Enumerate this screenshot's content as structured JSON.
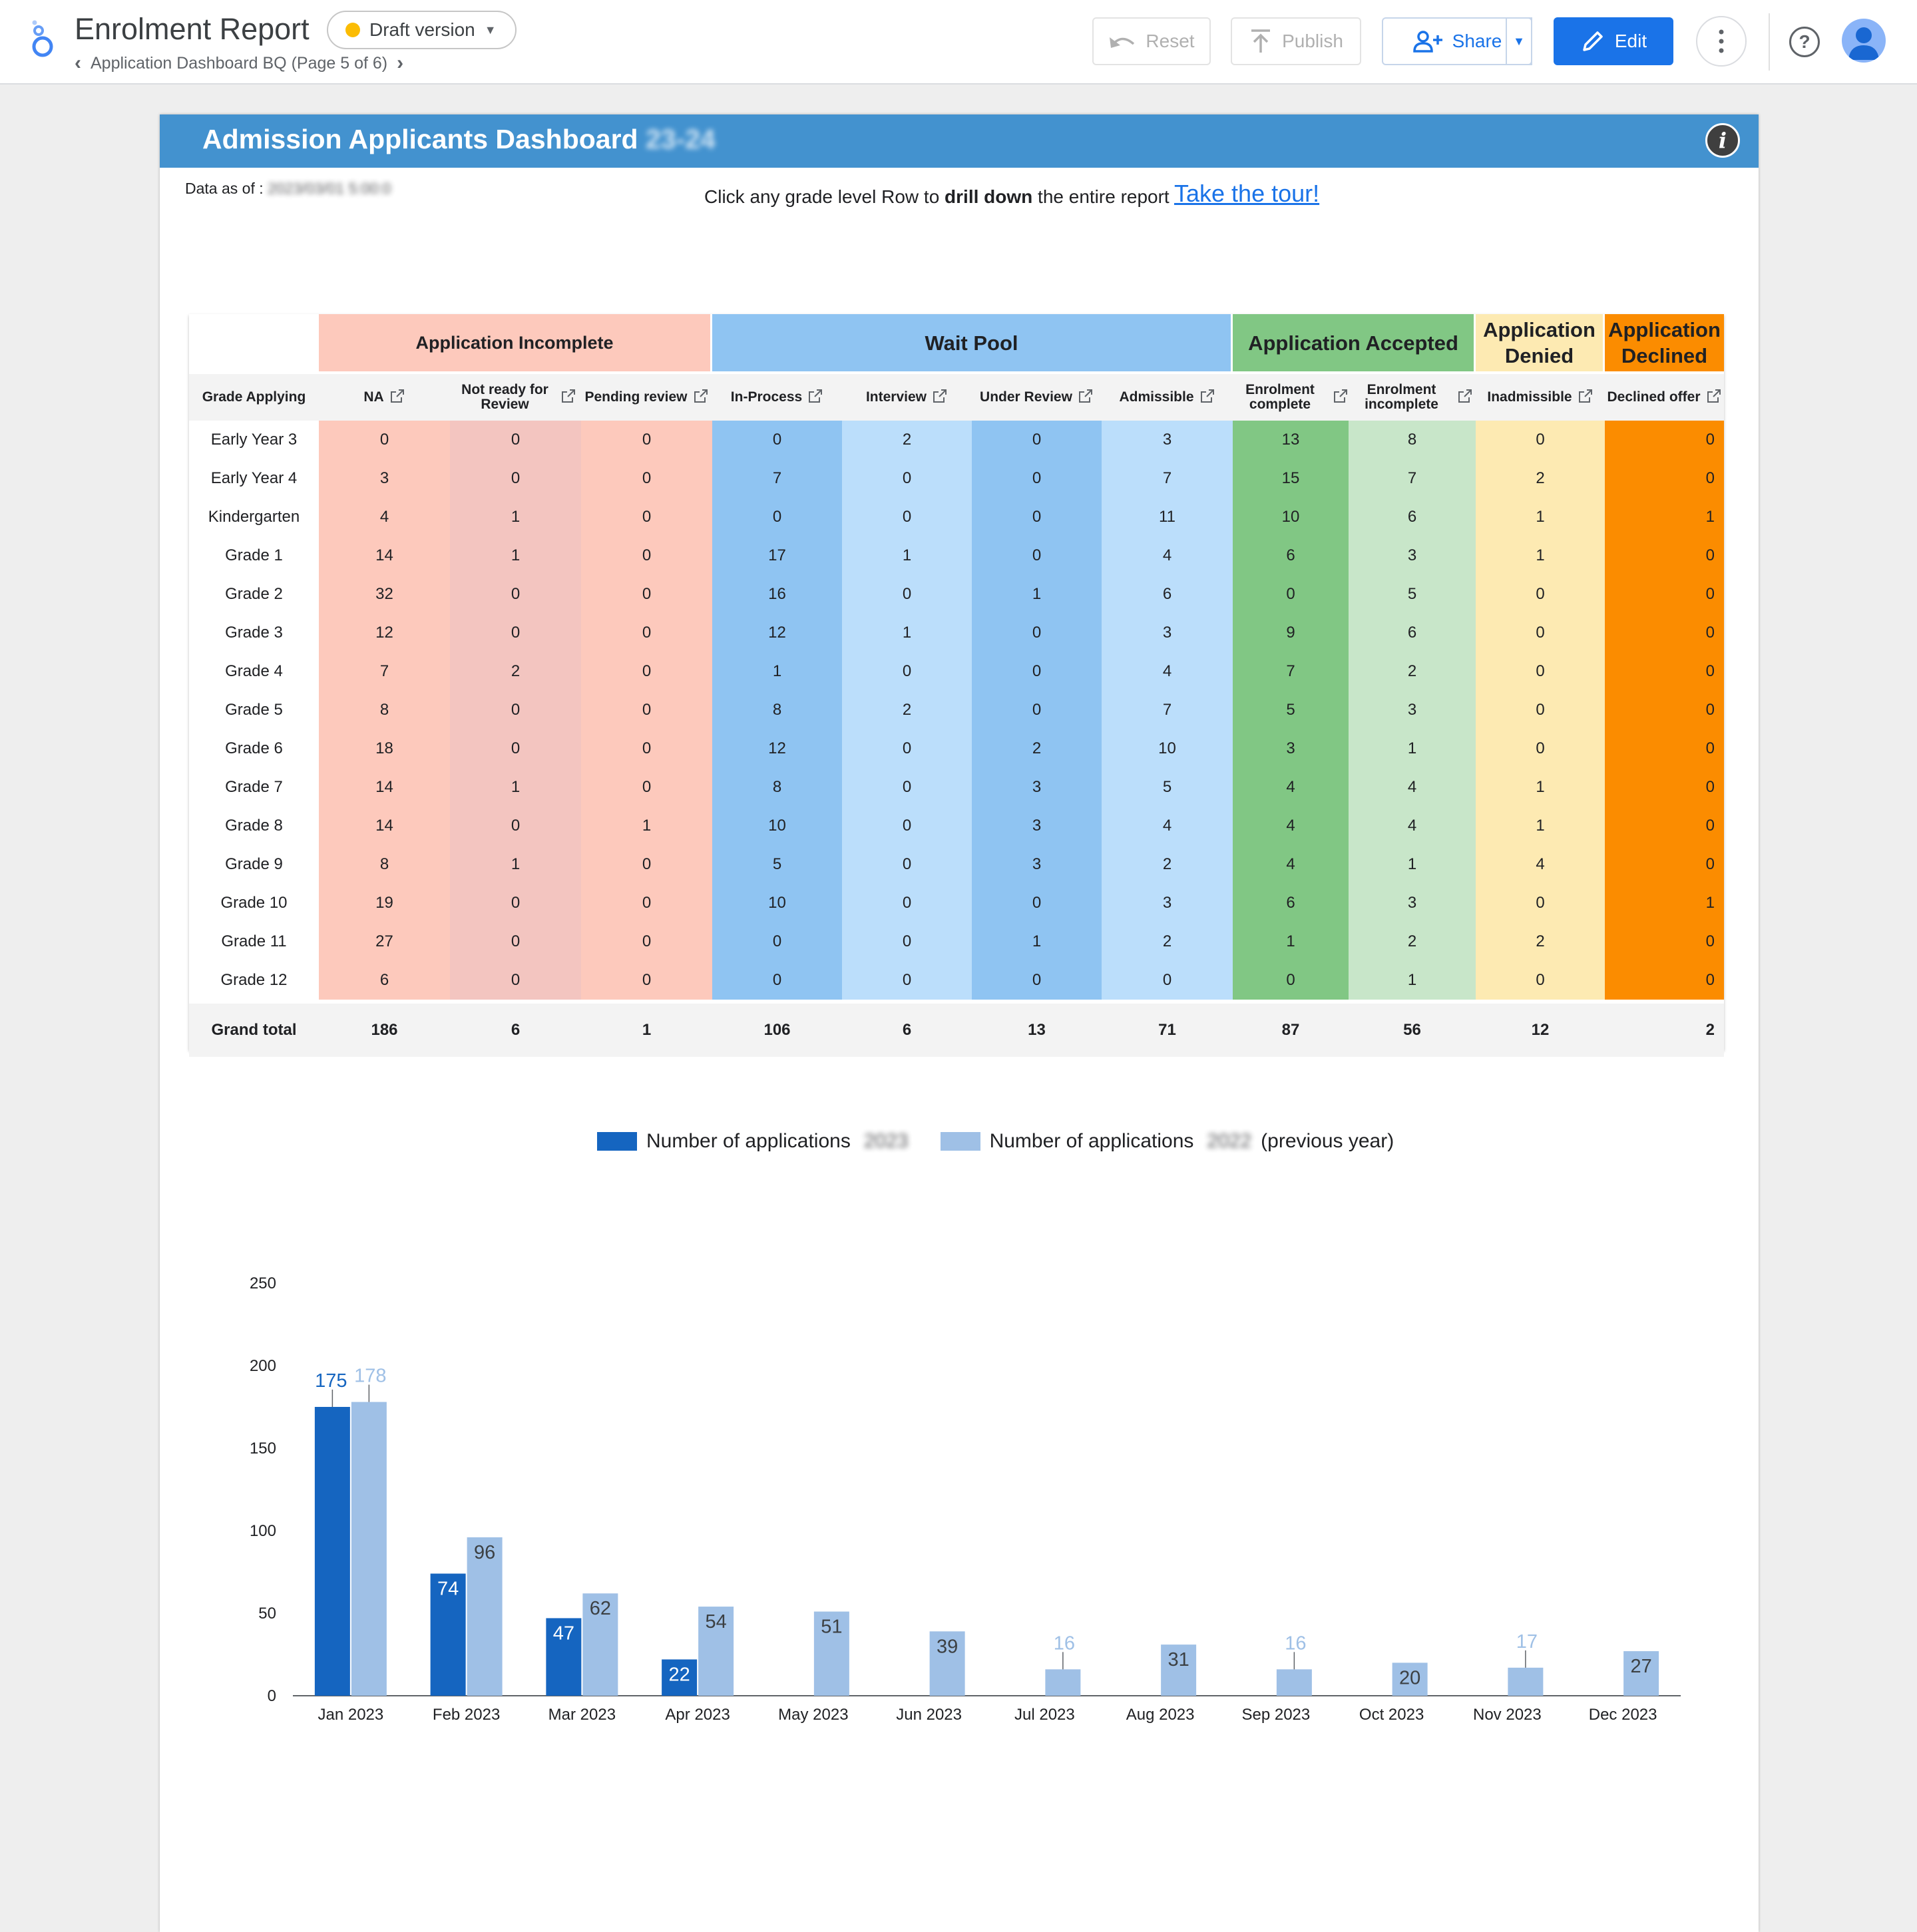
{
  "header": {
    "report_title": "Enrolment Report",
    "draft_label": "Draft version",
    "page_nav": "Application Dashboard BQ (Page 5 of 6)",
    "reset_label": "Reset",
    "publish_label": "Publish",
    "share_label": "Share",
    "edit_label": "Edit",
    "help_label": "?"
  },
  "dashboard": {
    "title": "Admission Applicants Dashboard",
    "title_suffix_blurred": "23-24",
    "data_as_of_label": "Data as of : ",
    "data_as_of_value": "2023/03/01 5:00:0",
    "drill_text_pre": "Click any grade level Row to ",
    "drill_text_bold": "drill down",
    "drill_text_post": " the entire report",
    "tour_link": "Take the tour!"
  },
  "table": {
    "groups": [
      {
        "label": "Application Incomplete",
        "color": "#fdc9bc"
      },
      {
        "label": "Wait Pool",
        "color": "#8fc4f2"
      },
      {
        "label": "Application Accepted",
        "color": "#81c784"
      },
      {
        "label": "Application Denied",
        "color": "#fdeab2"
      },
      {
        "label": "Application Declined",
        "color": "#fb8c00"
      }
    ],
    "grade_header": "Grade Applying",
    "columns": [
      "NA",
      "Not ready for Review",
      "Pending review",
      "In-Process",
      "Interview",
      "Under Review",
      "Admissible",
      "Enrolment complete",
      "Enrolment incomplete",
      "Inadmissible",
      "Declined offer"
    ],
    "column_colors": [
      "#fdc9bc",
      "#f3c5c0",
      "#fdc9bc",
      "#8fc4f2",
      "#bbdefb",
      "#8fc4f2",
      "#bbdefb",
      "#81c784",
      "#c8e6c9",
      "#fdeab2",
      "#fb8c00"
    ],
    "rows": [
      {
        "grade": "Early Year 3",
        "values": [
          0,
          0,
          0,
          0,
          2,
          0,
          3,
          13,
          8,
          0,
          0
        ]
      },
      {
        "grade": "Early Year 4",
        "values": [
          3,
          0,
          0,
          7,
          0,
          0,
          7,
          15,
          7,
          2,
          0
        ]
      },
      {
        "grade": "Kindergarten",
        "values": [
          4,
          1,
          0,
          0,
          0,
          0,
          11,
          10,
          6,
          1,
          1
        ]
      },
      {
        "grade": "Grade 1",
        "values": [
          14,
          1,
          0,
          17,
          1,
          0,
          4,
          6,
          3,
          1,
          0
        ]
      },
      {
        "grade": "Grade 2",
        "values": [
          32,
          0,
          0,
          16,
          0,
          1,
          6,
          0,
          5,
          0,
          0
        ]
      },
      {
        "grade": "Grade 3",
        "values": [
          12,
          0,
          0,
          12,
          1,
          0,
          3,
          9,
          6,
          0,
          0
        ]
      },
      {
        "grade": "Grade 4",
        "values": [
          7,
          2,
          0,
          1,
          0,
          0,
          4,
          7,
          2,
          0,
          0
        ]
      },
      {
        "grade": "Grade 5",
        "values": [
          8,
          0,
          0,
          8,
          2,
          0,
          7,
          5,
          3,
          0,
          0
        ]
      },
      {
        "grade": "Grade 6",
        "values": [
          18,
          0,
          0,
          12,
          0,
          2,
          10,
          3,
          1,
          0,
          0
        ]
      },
      {
        "grade": "Grade 7",
        "values": [
          14,
          1,
          0,
          8,
          0,
          3,
          5,
          4,
          4,
          1,
          0
        ]
      },
      {
        "grade": "Grade 8",
        "values": [
          14,
          0,
          1,
          10,
          0,
          3,
          4,
          4,
          4,
          1,
          0
        ]
      },
      {
        "grade": "Grade 9",
        "values": [
          8,
          1,
          0,
          5,
          0,
          3,
          2,
          4,
          1,
          4,
          0
        ]
      },
      {
        "grade": "Grade 10",
        "values": [
          19,
          0,
          0,
          10,
          0,
          0,
          3,
          6,
          3,
          0,
          1
        ]
      },
      {
        "grade": "Grade 11",
        "values": [
          27,
          0,
          0,
          0,
          0,
          1,
          2,
          1,
          2,
          2,
          0
        ]
      },
      {
        "grade": "Grade 12",
        "values": [
          6,
          0,
          0,
          0,
          0,
          0,
          0,
          0,
          1,
          0,
          0
        ]
      }
    ],
    "total_label": "Grand total",
    "totals": [
      186,
      6,
      1,
      106,
      6,
      13,
      71,
      87,
      56,
      12,
      2
    ]
  },
  "chart_data": {
    "type": "bar",
    "categories": [
      "Jan 2023",
      "Feb 2023",
      "Mar 2023",
      "Apr 2023",
      "May 2023",
      "Jun 2023",
      "Jul 2023",
      "Aug 2023",
      "Sep 2023",
      "Oct 2023",
      "Nov 2023",
      "Dec 2023"
    ],
    "series": [
      {
        "name": "Number of applications",
        "name_blurred": "2023",
        "color": "#1565c0",
        "values": [
          175,
          74,
          47,
          22,
          null,
          null,
          null,
          null,
          null,
          null,
          null,
          null
        ]
      },
      {
        "name": "Number of applications",
        "name_blurred": "2022",
        "name_suffix": "(previous year)",
        "color": "#9fc0e6",
        "values": [
          178,
          96,
          62,
          54,
          51,
          39,
          16,
          31,
          16,
          20,
          17,
          27
        ]
      }
    ],
    "yticks": [
      0,
      50,
      100,
      150,
      200,
      250
    ],
    "ylim": [
      0,
      250
    ],
    "title": "",
    "xlabel": "",
    "ylabel": "",
    "legend": "top",
    "grid": false
  }
}
